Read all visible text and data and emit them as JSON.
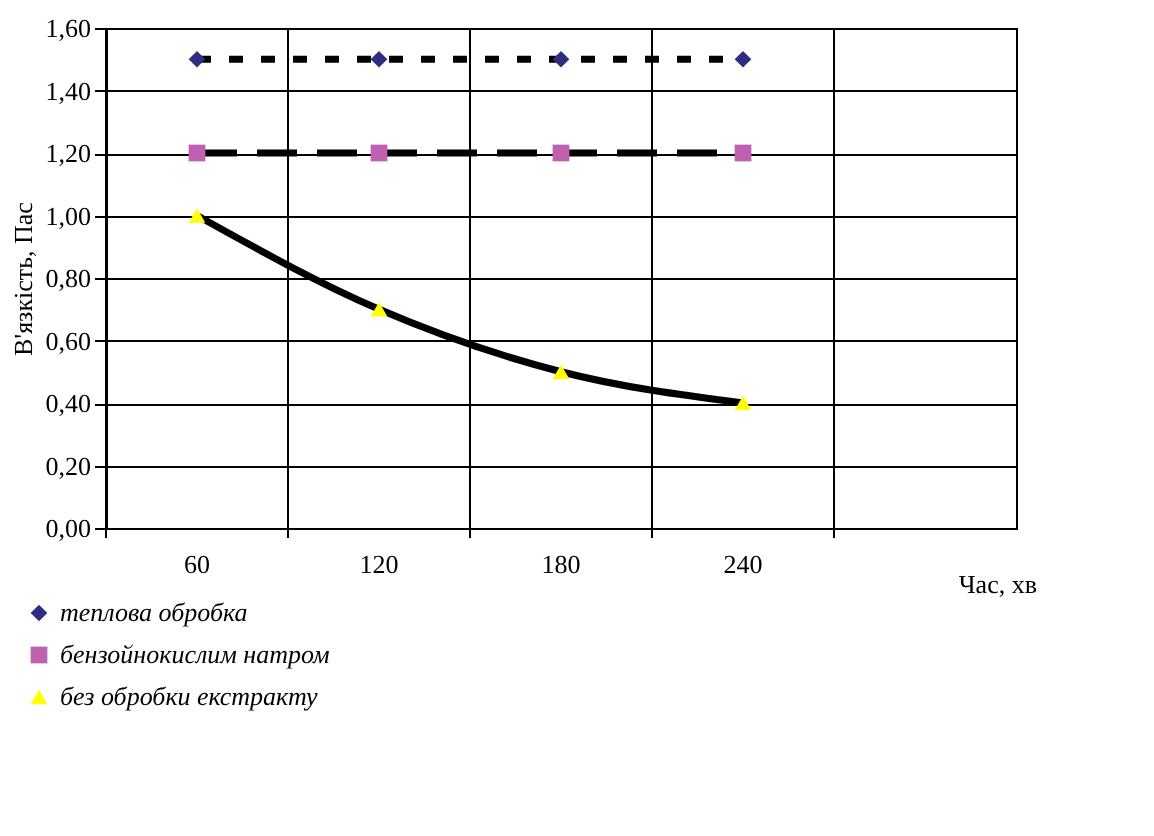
{
  "chart_data": {
    "type": "line",
    "xlabel": "Час, хв",
    "ylabel": "В'язкість, Пас",
    "categories": [
      "60",
      "120",
      "180",
      "240",
      null
    ],
    "ylim": [
      0,
      1.6
    ],
    "yticks": [
      {
        "value": 0,
        "label": "0,00"
      },
      {
        "value": 0.2,
        "label": "0,20"
      },
      {
        "value": 0.4,
        "label": "0,40"
      },
      {
        "value": 0.6,
        "label": "0,60"
      },
      {
        "value": 0.8,
        "label": "0,80"
      },
      {
        "value": 1.0,
        "label": "1,00"
      },
      {
        "value": 1.2,
        "label": "1,20"
      },
      {
        "value": 1.4,
        "label": "1,40"
      },
      {
        "value": 1.6,
        "label": "1,60"
      }
    ],
    "grid": true,
    "legend": "bottom left",
    "series": [
      {
        "name": "теплова обробка",
        "color": "#000000",
        "colors": [
          "#2e2e80",
          "#2e2e80",
          "#2e2e80",
          "#2e2e80",
          null
        ],
        "marker": "diamond",
        "line_style": "dotted",
        "values": [
          1.5,
          1.5,
          1.5,
          1.5,
          null
        ]
      },
      {
        "name": "бензойнокислим натром",
        "color": "#000000",
        "colors": [
          "#c060b0",
          "#c060b0",
          "#c060b0",
          "#c060b0",
          null
        ],
        "marker": "square",
        "line_style": "dashed",
        "values": [
          1.2,
          1.2,
          1.2,
          1.2,
          null
        ]
      },
      {
        "name": "без обробки екстракту",
        "color": "#000000",
        "colors": [
          "#ffff00",
          "#ffff00",
          "#ffff00",
          "#ffff00",
          null
        ],
        "marker": "triangle",
        "line_style": "solid",
        "values": [
          1.0,
          0.7,
          0.5,
          0.4,
          null
        ]
      }
    ]
  }
}
